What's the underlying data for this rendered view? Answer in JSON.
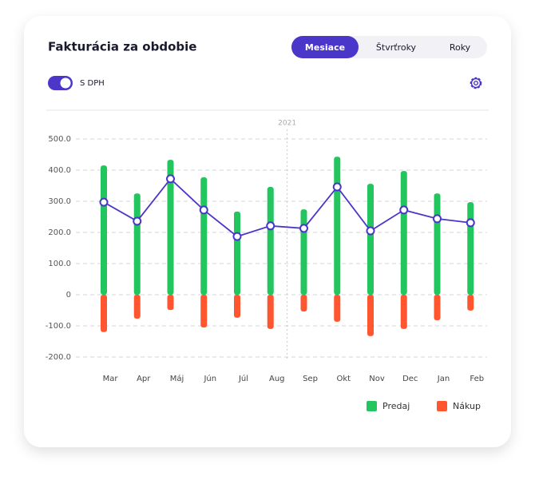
{
  "header": {
    "title": "Fakturácia za obdobie",
    "tabs": [
      "Mesiace",
      "Štvrťroky",
      "Roky"
    ],
    "toggle_label": "S DPH"
  },
  "chart_data": {
    "type": "bar",
    "categories": [
      "Mar",
      "Apr",
      "Máj",
      "Jún",
      "Júl",
      "Aug",
      "Sep",
      "Okt",
      "Nov",
      "Dec",
      "Jan",
      "Feb"
    ],
    "series": [
      {
        "name": "Predaj",
        "color": "#22c55e",
        "values": [
          415,
          325,
          433,
          377,
          267,
          346,
          274,
          443,
          356,
          397,
          325,
          297
        ]
      },
      {
        "name": "Nákup",
        "color": "#ff5630",
        "values": [
          -120,
          -77,
          -49,
          -105,
          -74,
          -110,
          -54,
          -87,
          -133,
          -110,
          -82,
          -51
        ]
      },
      {
        "type": "line",
        "color": "#4a36c9",
        "values": [
          297,
          236,
          372,
          272,
          187,
          221,
          213,
          346,
          205,
          272,
          244,
          231
        ]
      }
    ],
    "ylim": [
      -200,
      500
    ],
    "yticks": [
      {
        "value": 500,
        "label": "500.0"
      },
      {
        "value": 400,
        "label": "400.0"
      },
      {
        "value": 300,
        "label": "300.0"
      },
      {
        "value": 200,
        "label": "200.0"
      },
      {
        "value": 100,
        "label": "100.0"
      },
      0,
      {
        "value": -100,
        "label": "-100.0"
      },
      {
        "value": -200,
        "label": "-200.0"
      }
    ],
    "grid": true,
    "annotation": "2021"
  }
}
